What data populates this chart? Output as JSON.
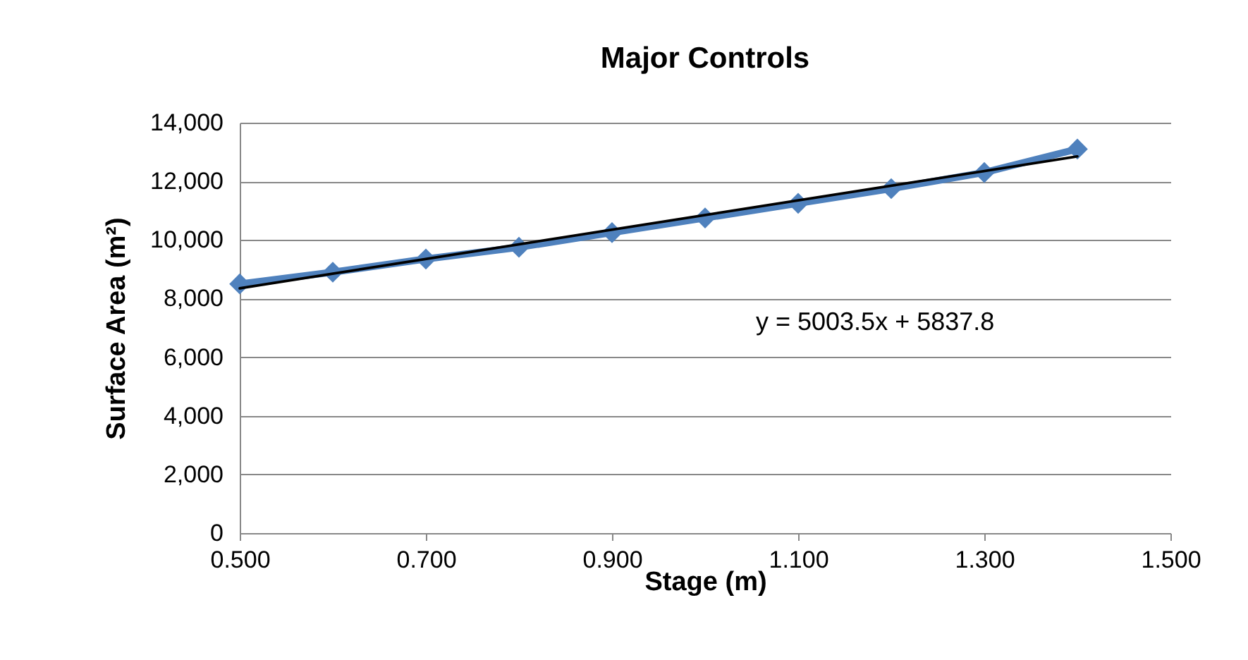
{
  "chart_data": {
    "type": "line",
    "title": "Major Controls",
    "xlabel": "Stage (m)",
    "ylabel": "Surface Area (m²)",
    "x": [
      0.5,
      0.6,
      0.7,
      0.8,
      0.9,
      1.0,
      1.1,
      1.2,
      1.3,
      1.4
    ],
    "series": [
      {
        "color": "#4f81bd",
        "values": [
          8500,
          8900,
          9350,
          9750,
          10250,
          10750,
          11250,
          11750,
          12300,
          13100
        ]
      },
      {
        "type": "line",
        "color": "#000000",
        "marker": "none",
        "x": [
          0.5,
          1.4
        ],
        "values": [
          8350,
          12850
        ]
      }
    ],
    "annotations": [
      "y = 5003.5x + 5837.8"
    ],
    "xlim": [
      0.5,
      1.5
    ],
    "xticks": [
      {
        "value": 0.5,
        "label": "0.500"
      },
      {
        "value": 0.7,
        "label": "0.700"
      },
      {
        "value": 0.9,
        "label": "0.900"
      },
      {
        "value": 1.1,
        "label": "1.100"
      },
      {
        "value": 1.3,
        "label": "1.300"
      },
      {
        "value": 1.5,
        "label": "1.500"
      }
    ],
    "ylim": [
      0,
      14000
    ],
    "yticks": [
      0,
      {
        "value": 2000,
        "label": "2,000"
      },
      {
        "value": 4000,
        "label": "4,000"
      },
      {
        "value": 6000,
        "label": "6,000"
      },
      {
        "value": 8000,
        "label": "8,000"
      },
      {
        "value": 10000,
        "label": "10,000"
      },
      {
        "value": 12000,
        "label": "12,000"
      },
      {
        "value": 14000,
        "label": "14,000"
      }
    ],
    "grid": "y",
    "marker": "diamond",
    "line_style": "solid"
  }
}
